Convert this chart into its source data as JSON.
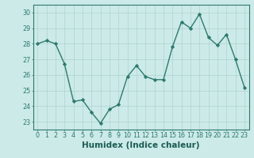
{
  "x": [
    0,
    1,
    2,
    3,
    4,
    5,
    6,
    7,
    8,
    9,
    10,
    11,
    12,
    13,
    14,
    15,
    16,
    17,
    18,
    19,
    20,
    21,
    22,
    23
  ],
  "y": [
    28.0,
    28.2,
    28.0,
    26.7,
    24.3,
    24.4,
    23.6,
    22.9,
    23.8,
    24.1,
    25.9,
    26.6,
    25.9,
    25.7,
    25.7,
    27.8,
    29.4,
    29.0,
    29.9,
    28.4,
    27.9,
    28.6,
    27.0,
    25.2
  ],
  "line_color": "#2d7a6e",
  "marker": "D",
  "marker_size": 2.2,
  "line_width": 1.0,
  "xlabel": "Humidex (Indice chaleur)",
  "xlim": [
    -0.5,
    23.5
  ],
  "ylim": [
    22.5,
    30.5
  ],
  "yticks": [
    23,
    24,
    25,
    26,
    27,
    28,
    29,
    30
  ],
  "xticks": [
    0,
    1,
    2,
    3,
    4,
    5,
    6,
    7,
    8,
    9,
    10,
    11,
    12,
    13,
    14,
    15,
    16,
    17,
    18,
    19,
    20,
    21,
    22,
    23
  ],
  "bg_color": "#cceae7",
  "grid_color": "#aed4d0",
  "line_axis_color": "#2d7a6e",
  "label_color": "#1a5c52",
  "xlabel_fontsize": 7.5,
  "tick_fontsize": 5.8
}
